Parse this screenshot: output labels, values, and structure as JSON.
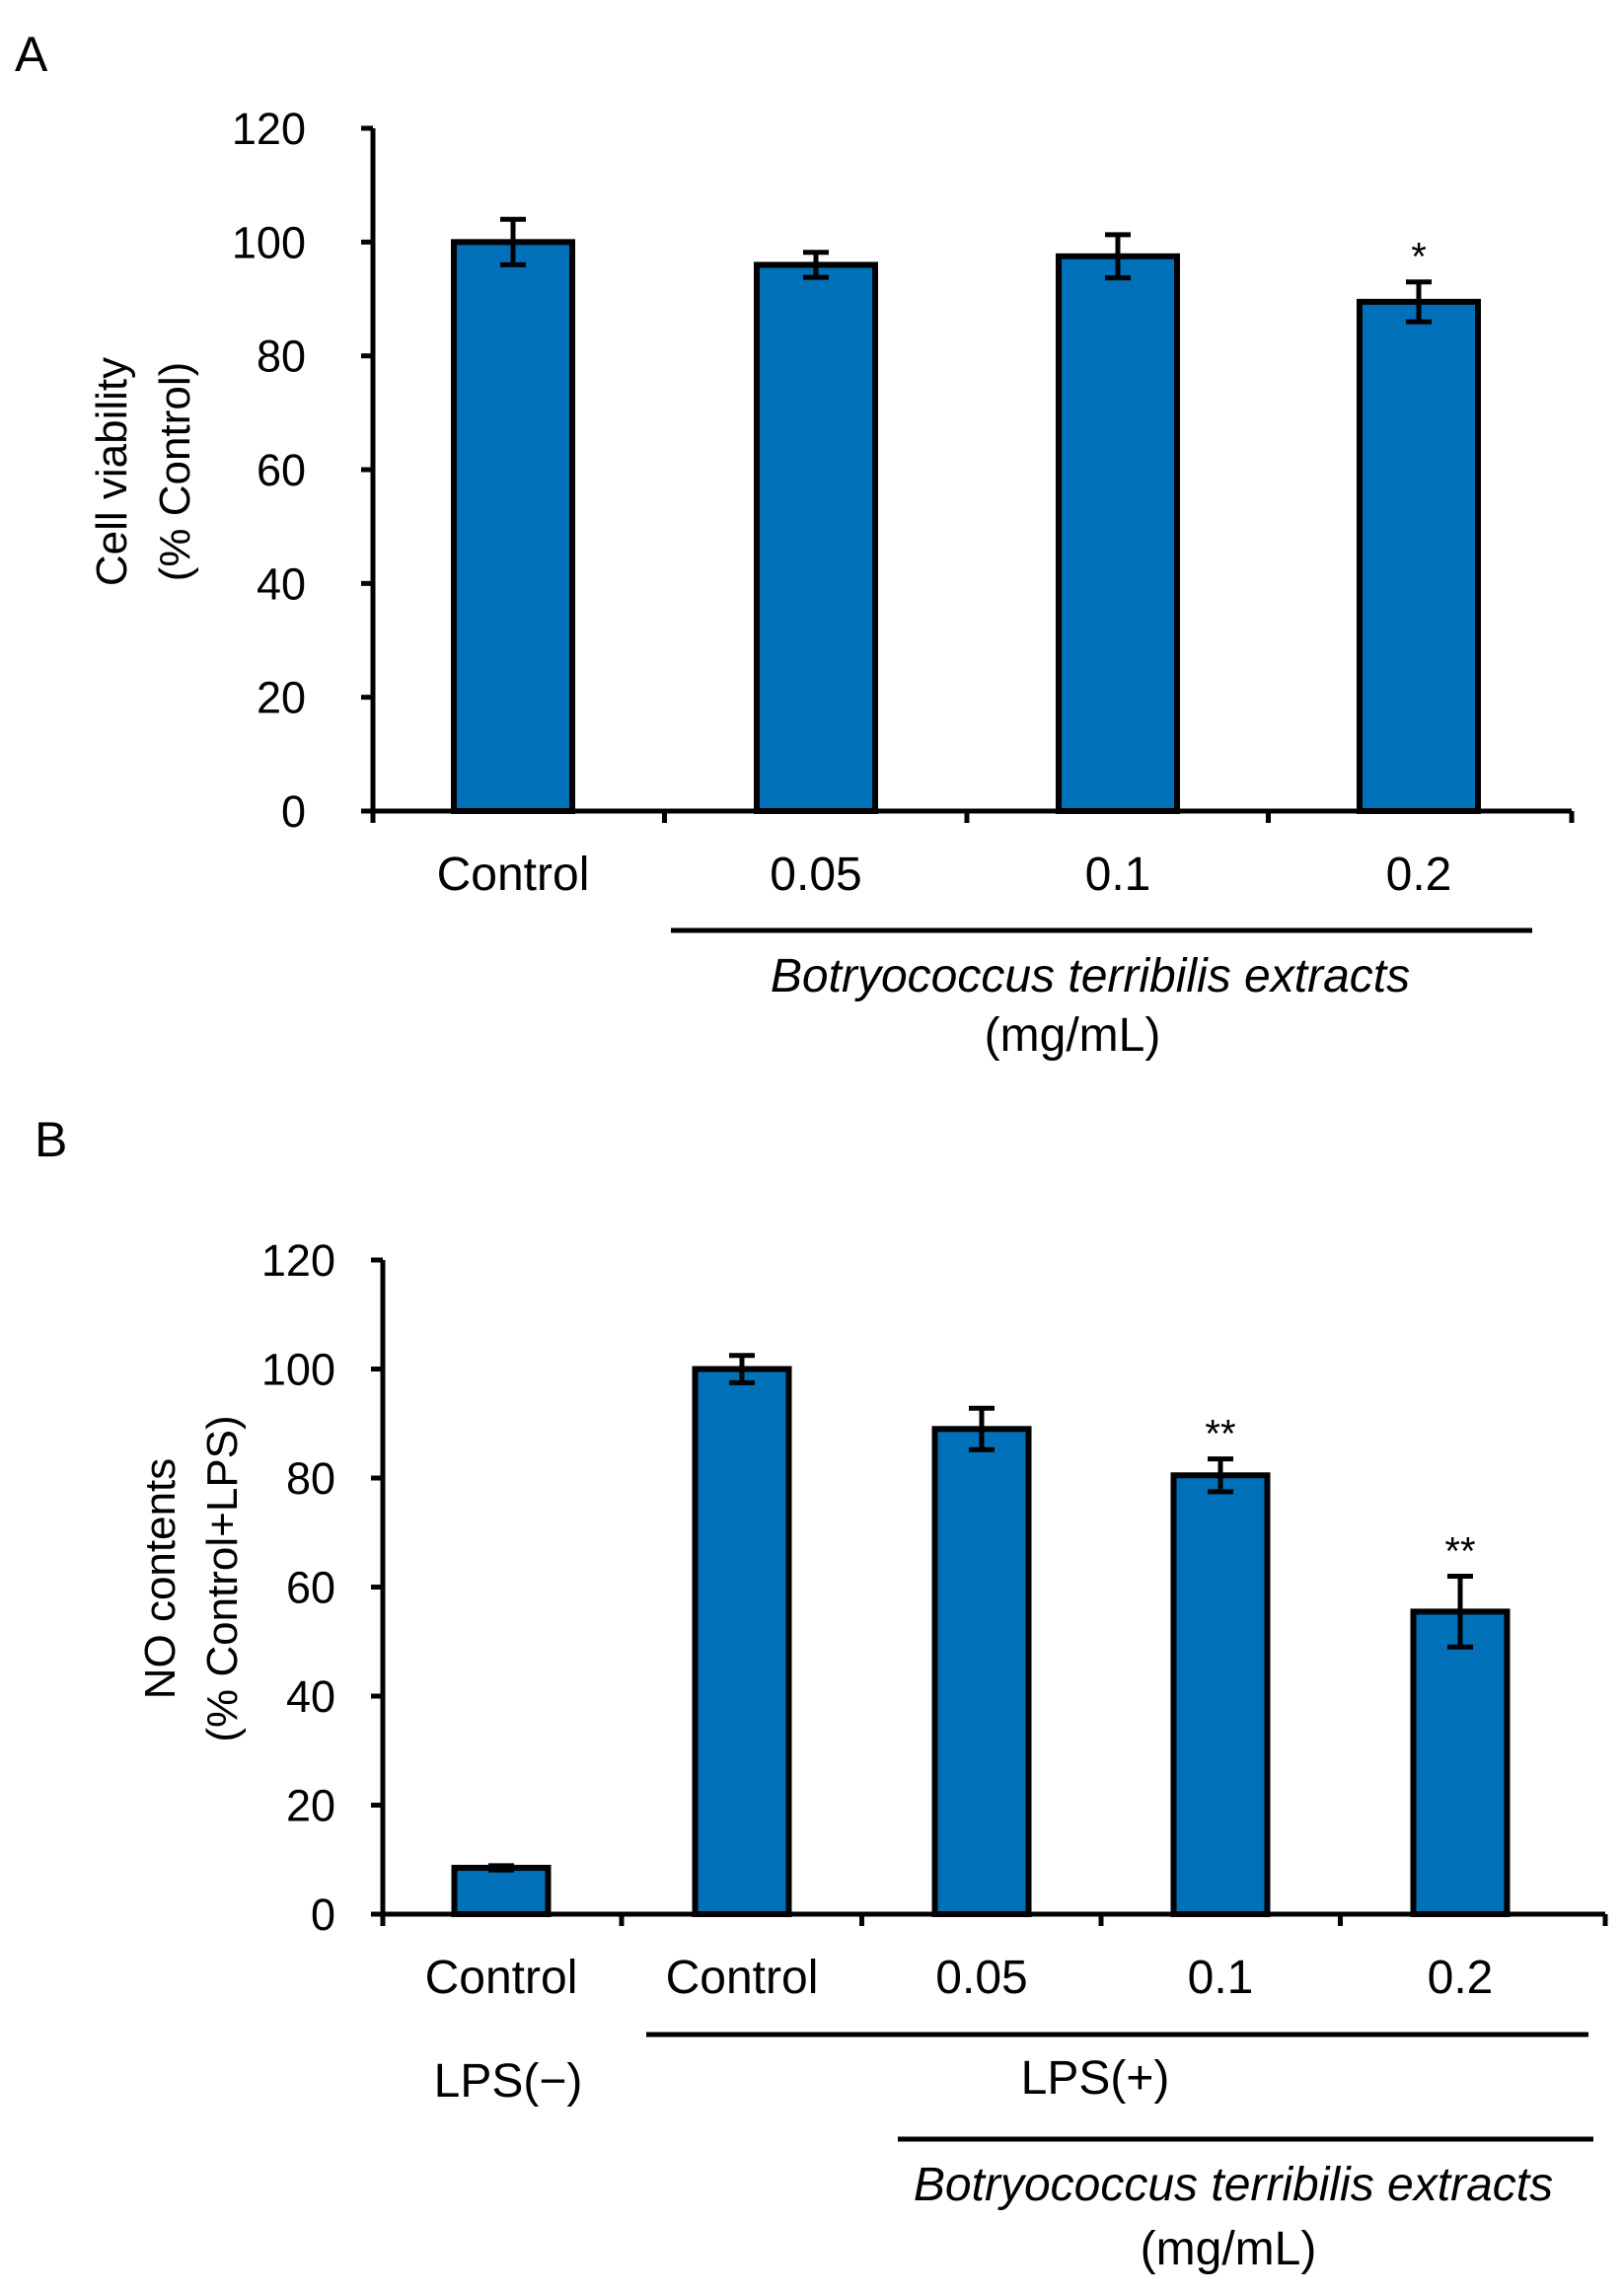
{
  "figure": {
    "panels": [
      {
        "letter": "A"
      },
      {
        "letter": "B"
      }
    ]
  },
  "chart_data": [
    {
      "type": "bar",
      "panel": "A",
      "ylabel_line1": "Cell viability",
      "ylabel_line2": "(% Control)",
      "ylim": [
        0,
        120
      ],
      "yticks": [
        0,
        20,
        40,
        60,
        80,
        100,
        120
      ],
      "categories": [
        "Control",
        "0.05",
        "0.1",
        "0.2"
      ],
      "values": [
        100,
        96,
        97.5,
        89.5
      ],
      "errors": [
        4,
        2.2,
        3.8,
        3.5
      ],
      "significance": [
        "",
        "",
        "",
        "*"
      ],
      "bar_color": "#0070b8",
      "brackets": [
        {
          "label_line1": "Botryococcus terribilis extracts",
          "label_line2": "(mg/mL)"
        }
      ]
    },
    {
      "type": "bar",
      "panel": "B",
      "ylabel_line1": "NO contents",
      "ylabel_line2": "(% Control+LPS)",
      "ylim": [
        0,
        120
      ],
      "yticks": [
        0,
        20,
        40,
        60,
        80,
        100,
        120
      ],
      "categories": [
        "Control",
        "Control",
        "0.05",
        "0.1",
        "0.2"
      ],
      "values": [
        8.5,
        100,
        89,
        80.5,
        55.5
      ],
      "errors": [
        0.4,
        2.5,
        3.8,
        3,
        6.5
      ],
      "significance": [
        "",
        "",
        "",
        "**",
        "**"
      ],
      "bar_color": "#0070b8",
      "group_labels": {
        "lps_minus": "LPS(−)",
        "lps_plus": "LPS(+)"
      },
      "brackets": [
        {
          "label_line1": "Botryococcus terribilis extracts",
          "label_line2": "(mg/mL)"
        }
      ]
    }
  ]
}
